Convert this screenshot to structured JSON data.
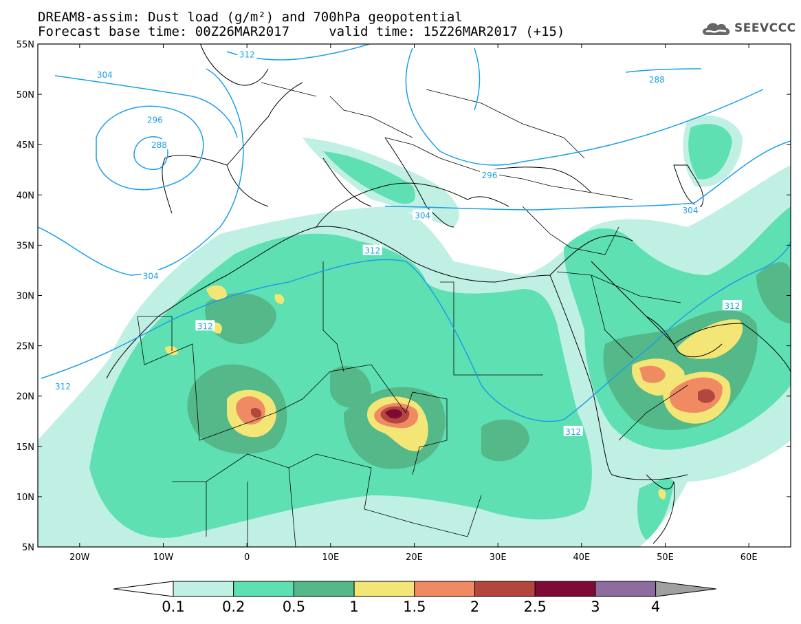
{
  "header": {
    "title_line1": "DREAM8-assim: Dust load (g/m²) and 700hPa geopotential",
    "title_line2": "Forecast base time: 00Z26MAR2017     valid time: 15Z26MAR2017 (+15)"
  },
  "logo": {
    "text": "SEEVCCC",
    "icon": "cloud-icon",
    "color": "#555555"
  },
  "map": {
    "lat_labels": [
      "55N",
      "50N",
      "45N",
      "40N",
      "35N",
      "30N",
      "25N",
      "20N",
      "15N",
      "10N",
      "5N"
    ],
    "lon_labels": [
      "20W",
      "10W",
      "0",
      "10E",
      "20E",
      "30E",
      "40E",
      "50E",
      "60E"
    ],
    "lat_range": [
      5,
      55
    ],
    "lon_range": [
      -25,
      65
    ],
    "contour_color": "#1a9ee8",
    "contour_labels": [
      {
        "text": "312",
        "lon": 0,
        "lat": 54
      },
      {
        "text": "304",
        "lon": -17,
        "lat": 52
      },
      {
        "text": "296",
        "lon": -11,
        "lat": 47.5
      },
      {
        "text": "288",
        "lon": -10.5,
        "lat": 45
      },
      {
        "text": "288",
        "lon": 49,
        "lat": 51.5
      },
      {
        "text": "296",
        "lon": 29,
        "lat": 42
      },
      {
        "text": "304",
        "lon": 21,
        "lat": 38
      },
      {
        "text": "304",
        "lon": 53,
        "lat": 38.5
      },
      {
        "text": "304",
        "lon": -11.5,
        "lat": 32
      },
      {
        "text": "312",
        "lon": 15,
        "lat": 34.5
      },
      {
        "text": "312",
        "lon": -5,
        "lat": 27
      },
      {
        "text": "312",
        "lon": -22,
        "lat": 21
      },
      {
        "text": "312",
        "lon": 39,
        "lat": 16.5
      },
      {
        "text": "312",
        "lon": 58,
        "lat": 29
      }
    ]
  },
  "colorbar": {
    "labels": [
      "0.1",
      "0.2",
      "0.5",
      "1",
      "1.5",
      "2",
      "2.5",
      "3",
      "4"
    ],
    "colors": [
      "#ffffff",
      "#c0efe3",
      "#5ee0b2",
      "#54b889",
      "#f4e676",
      "#ef8a62",
      "#b3473d",
      "#7e0a35",
      "#8e6b9f",
      "#a0a0a0"
    ]
  }
}
